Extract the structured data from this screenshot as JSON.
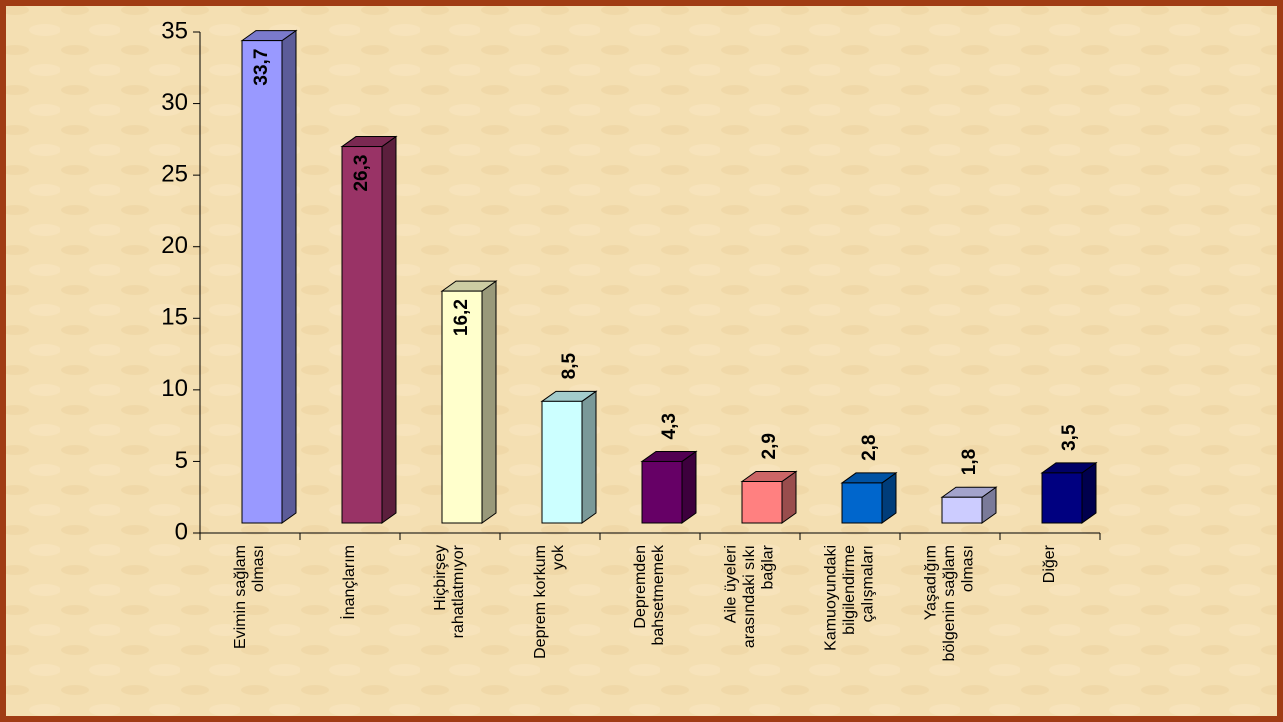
{
  "chart_data": {
    "type": "bar3d",
    "categories": [
      "Evimin sağlam olması",
      "İnançlarım",
      "Hiçbirşey rahatlatmıyor",
      "Deprem korkum yok",
      "Depremden bahsetmemek",
      "Aile üyeleri arasındaki sıkı bağlar",
      "Kamuoyundaki bilgilendirme çalışmaları",
      "Yaşadığım bölgenin sağlam olması",
      "Diğer"
    ],
    "values": [
      33.7,
      26.3,
      16.2,
      8.5,
      4.3,
      2.9,
      2.8,
      1.8,
      3.5
    ],
    "value_labels": [
      "33,7",
      "26,3",
      "16,2",
      "8,5",
      "4,3",
      "2,9",
      "2,8",
      "1,8",
      "3,5"
    ],
    "colors": [
      "#9999ff",
      "#993366",
      "#ffffcc",
      "#ccffff",
      "#660066",
      "#ff8080",
      "#0066cc",
      "#ccccff",
      "#000080"
    ],
    "ylim": [
      0,
      35
    ],
    "yticks": [
      0,
      5,
      10,
      15,
      20,
      25,
      30,
      35
    ],
    "grid": false
  }
}
